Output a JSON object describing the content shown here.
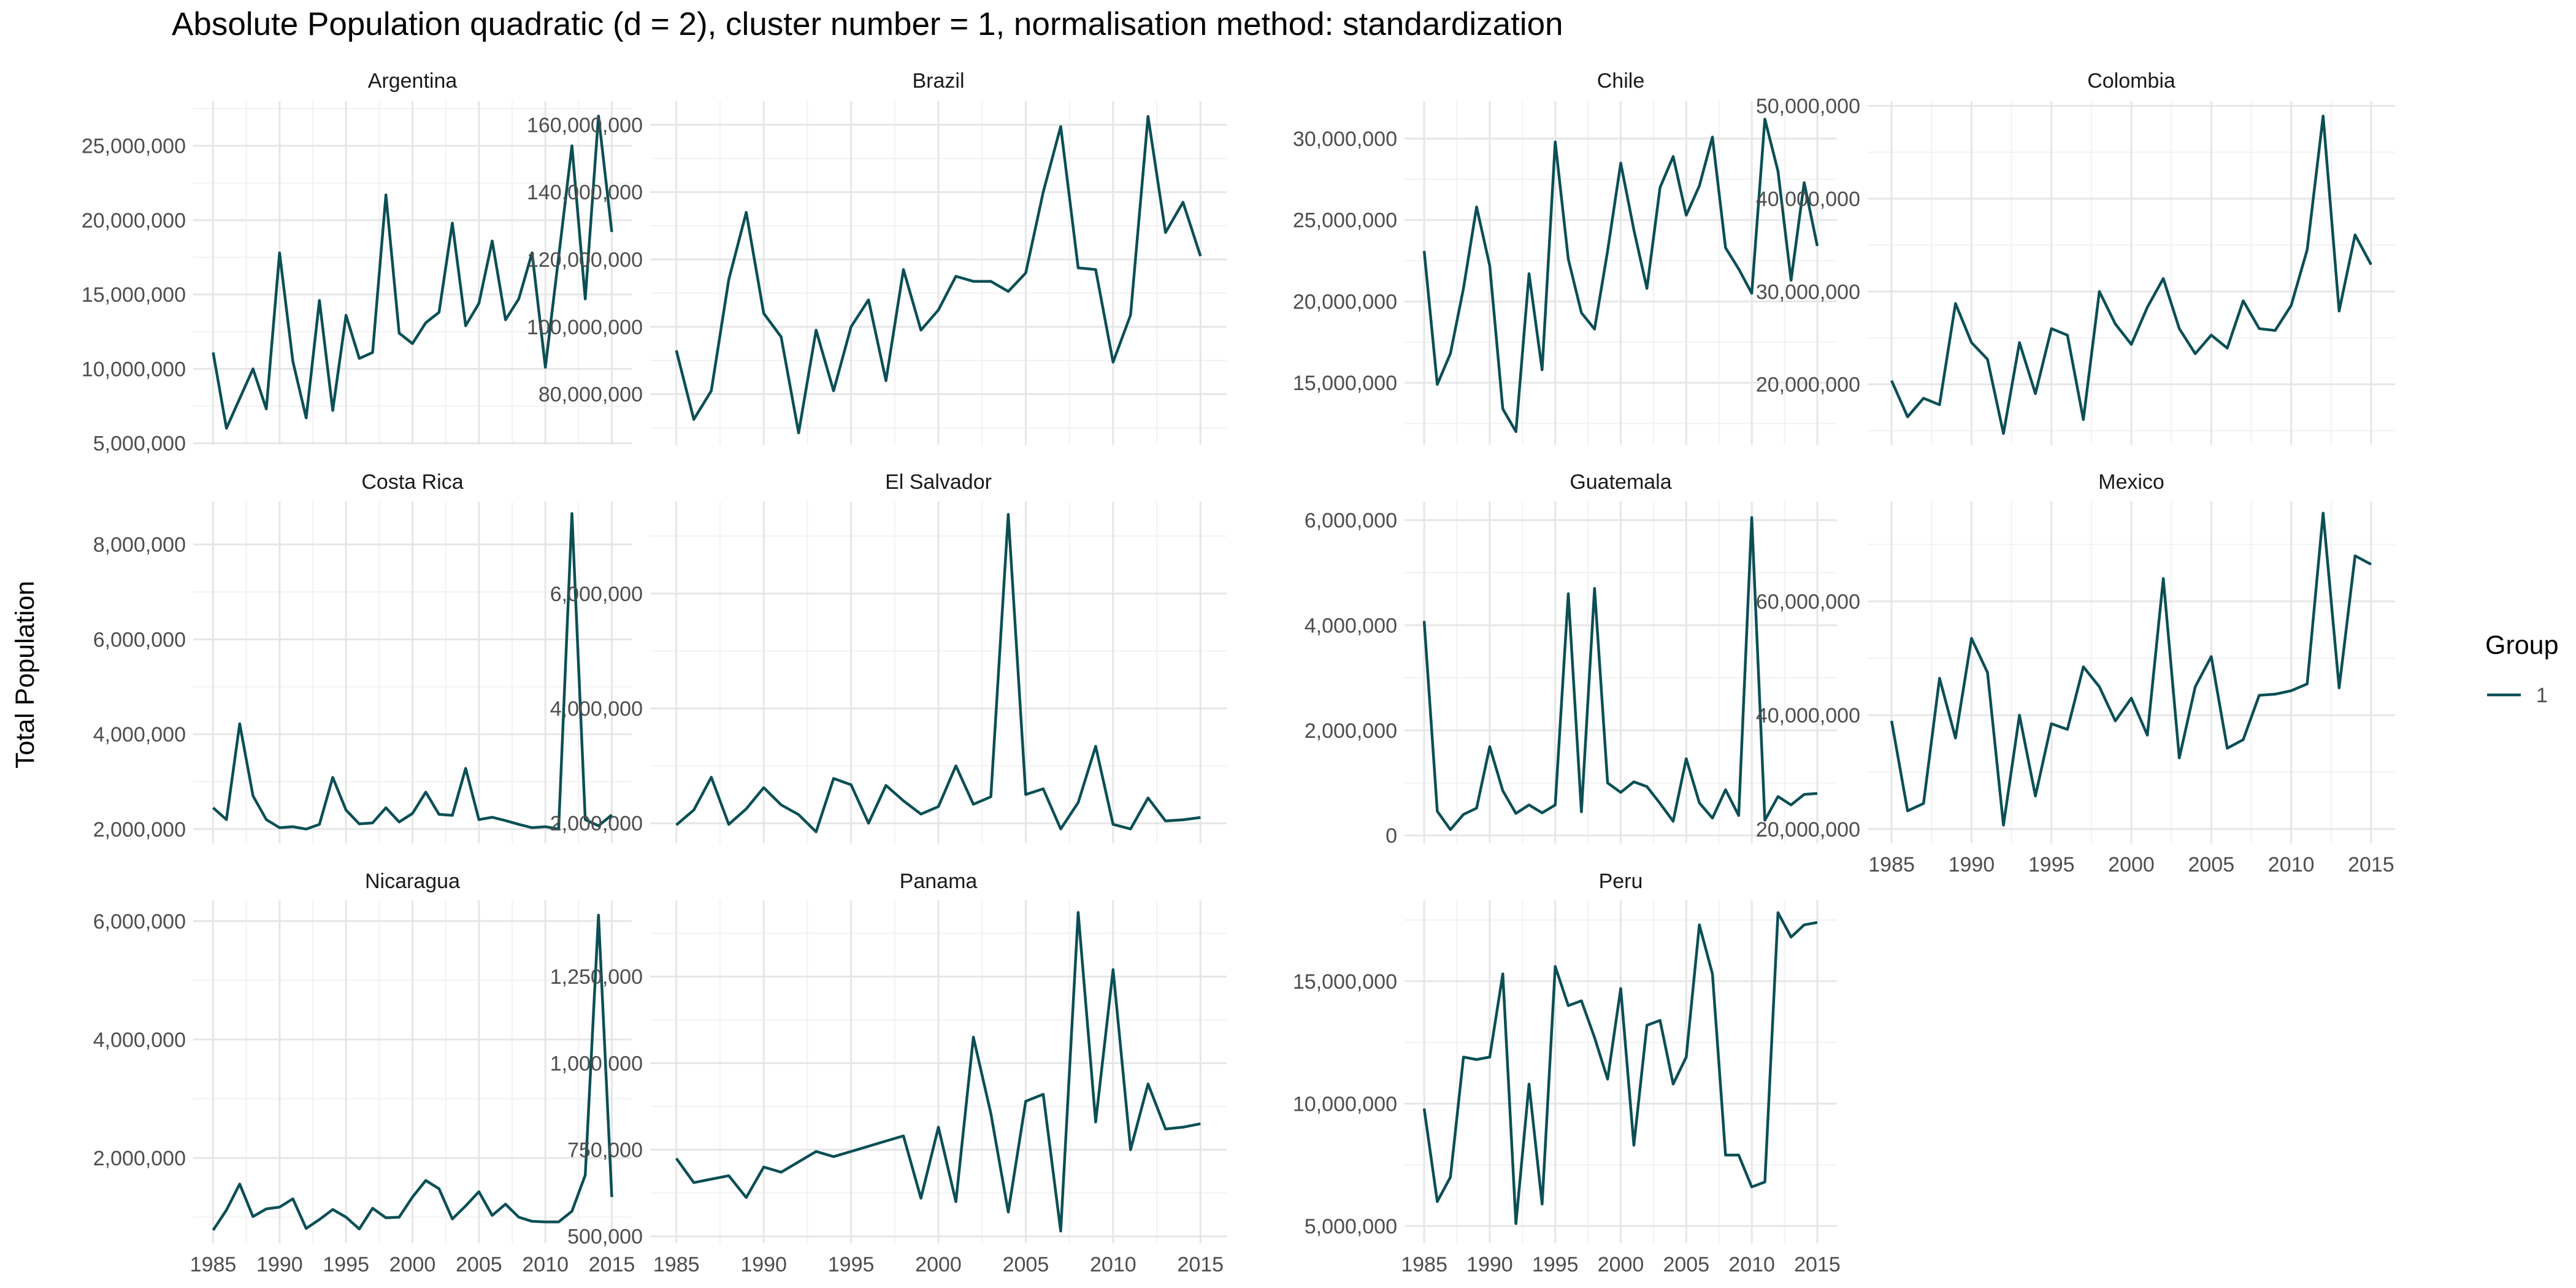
{
  "chart_data": {
    "type": "line",
    "title": "Absolute Population quadratic (d = 2), cluster number = 1, normalisation method: standardization",
    "ylabel": "Total Population",
    "xlabel": "",
    "legend": {
      "title": "Group",
      "placement": "right",
      "entries": [
        {
          "label": "1",
          "color": "#0b4f55"
        }
      ]
    },
    "x": [
      1985,
      1986,
      1987,
      1988,
      1989,
      1990,
      1991,
      1992,
      1993,
      1994,
      1995,
      1996,
      1997,
      1998,
      1999,
      2000,
      2001,
      2002,
      2003,
      2004,
      2005,
      2006,
      2007,
      2008,
      2009,
      2010,
      2011,
      2012,
      2013,
      2014,
      2015
    ],
    "x_ticks": [
      1985,
      1990,
      1995,
      2000,
      2005,
      2010,
      2015
    ],
    "xlim": [
      1983.5,
      2016.5
    ],
    "grid": true,
    "panels": [
      {
        "name": "Argentina",
        "y_ticks": [
          5000000,
          10000000,
          15000000,
          20000000,
          25000000
        ],
        "y_tick_labels": [
          "5,000,000",
          "10,000,000",
          "15,000,000",
          "20,000,000",
          "25,000,000"
        ],
        "ylim": [
          4900000,
          28000000
        ],
        "values": [
          11100000,
          6000000,
          8000000,
          10000000,
          7300000,
          17800000,
          10500000,
          6700000,
          14600000,
          7200000,
          13600000,
          10700000,
          11100000,
          21700000,
          12400000,
          11700000,
          13100000,
          13800000,
          19800000,
          12900000,
          14400000,
          18600000,
          13300000,
          14700000,
          17800000,
          10100000,
          17500000,
          25000000,
          14700000,
          27000000,
          19200000
        ]
      },
      {
        "name": "Brazil",
        "y_ticks": [
          80000000,
          100000000,
          120000000,
          140000000,
          160000000
        ],
        "y_tick_labels": [
          "80,000,000",
          "100,000,000",
          "120,000,000",
          "140,000,000",
          "160,000,000"
        ],
        "ylim": [
          65000000,
          167000000
        ],
        "values": [
          93000000,
          72500000,
          81000000,
          114000000,
          134000000,
          104000000,
          97000000,
          68500000,
          99000000,
          81000000,
          100000000,
          108000000,
          84000000,
          117000000,
          99000000,
          105000000,
          115000000,
          113500000,
          113500000,
          110500000,
          116000000,
          140000000,
          159500000,
          117500000,
          117000000,
          89500000,
          103500000,
          162500000,
          128000000,
          137000000,
          121000000
        ]
      },
      {
        "name": "Chile",
        "y_ticks": [
          15000000,
          20000000,
          25000000,
          30000000
        ],
        "y_tick_labels": [
          "15,000,000",
          "20,000,000",
          "25,000,000",
          "30,000,000"
        ],
        "ylim": [
          11200000,
          32300000
        ],
        "values": [
          23100000,
          14900000,
          16800000,
          20800000,
          25800000,
          22200000,
          13400000,
          12000000,
          21700000,
          15800000,
          29800000,
          22600000,
          19300000,
          18300000,
          23100000,
          28500000,
          24400000,
          20800000,
          27000000,
          28900000,
          25300000,
          27100000,
          30100000,
          23300000,
          22000000,
          20500000,
          31200000,
          28000000,
          21300000,
          27300000,
          23400000
        ]
      },
      {
        "name": "Colombia",
        "y_ticks": [
          20000000,
          30000000,
          40000000,
          50000000
        ],
        "y_tick_labels": [
          "20,000,000",
          "30,000,000",
          "40,000,000",
          "50,000,000"
        ],
        "ylim": [
          13500000,
          50500000
        ],
        "values": [
          20400000,
          16500000,
          18500000,
          17800000,
          28700000,
          24500000,
          22700000,
          14700000,
          24500000,
          19000000,
          26000000,
          25300000,
          16200000,
          30000000,
          26500000,
          24300000,
          28300000,
          31400000,
          26000000,
          23300000,
          25300000,
          23900000,
          29000000,
          26000000,
          25800000,
          28500000,
          34500000,
          48900000,
          27900000,
          36100000,
          32900000
        ]
      },
      {
        "name": "Costa Rica",
        "y_ticks": [
          2000000,
          4000000,
          6000000,
          8000000
        ],
        "y_tick_labels": [
          "2,000,000",
          "4,000,000",
          "6,000,000",
          "8,000,000"
        ],
        "ylim": [
          1700000,
          8900000
        ],
        "values": [
          2450000,
          2200000,
          4220000,
          2700000,
          2200000,
          2030000,
          2050000,
          2000000,
          2100000,
          3090000,
          2400000,
          2110000,
          2130000,
          2450000,
          2150000,
          2330000,
          2780000,
          2310000,
          2290000,
          3280000,
          2200000,
          2250000,
          2180000,
          2100000,
          2030000,
          2050000,
          2000000,
          8650000,
          2200000,
          2070000,
          2300000
        ]
      },
      {
        "name": "El Salvador",
        "y_ticks": [
          2000000,
          4000000,
          6000000
        ],
        "y_tick_labels": [
          "2,000,000",
          "4,000,000",
          "6,000,000"
        ],
        "ylim": [
          1650000,
          7600000
        ],
        "values": [
          1970000,
          2230000,
          2800000,
          1980000,
          2250000,
          2620000,
          2320000,
          2150000,
          1850000,
          2780000,
          2670000,
          2000000,
          2660000,
          2390000,
          2160000,
          2290000,
          3000000,
          2330000,
          2460000,
          7380000,
          2500000,
          2600000,
          1900000,
          2360000,
          3340000,
          1980000,
          1900000,
          2440000,
          2040000,
          2060000,
          2100000
        ]
      },
      {
        "name": "Guatemala",
        "y_ticks": [
          0,
          2000000,
          4000000,
          6000000
        ],
        "y_tick_labels": [
          "0",
          "2,000,000",
          "4,000,000",
          "6,000,000"
        ],
        "ylim": [
          -150000,
          6350000
        ],
        "values": [
          4080000,
          460000,
          110000,
          400000,
          520000,
          1690000,
          850000,
          420000,
          580000,
          430000,
          580000,
          4600000,
          450000,
          4700000,
          1000000,
          820000,
          1020000,
          930000,
          610000,
          270000,
          1460000,
          620000,
          330000,
          870000,
          380000,
          6050000,
          290000,
          740000,
          580000,
          780000,
          800000
        ]
      },
      {
        "name": "Mexico",
        "y_ticks": [
          20000000,
          40000000,
          60000000
        ],
        "y_tick_labels": [
          "20,000,000",
          "40,000,000",
          "60,000,000"
        ],
        "ylim": [
          17500000,
          77500000
        ],
        "values": [
          39000000,
          23200000,
          24500000,
          46500000,
          36000000,
          53500000,
          47500000,
          20700000,
          40000000,
          25800000,
          38500000,
          37500000,
          48500000,
          45000000,
          39000000,
          43000000,
          36500000,
          64000000,
          32500000,
          45000000,
          50300000,
          34200000,
          35700000,
          43500000,
          43700000,
          44300000,
          45500000,
          75500000,
          44800000,
          68000000,
          66500000
        ]
      },
      {
        "name": "Nicaragua",
        "y_ticks": [
          2000000,
          4000000,
          6000000
        ],
        "y_tick_labels": [
          "2,000,000",
          "4,000,000",
          "6,000,000"
        ],
        "ylim": [
          560000,
          6350000
        ],
        "values": [
          780000,
          1120000,
          1560000,
          1010000,
          1140000,
          1170000,
          1310000,
          810000,
          960000,
          1130000,
          1000000,
          800000,
          1150000,
          990000,
          1000000,
          1340000,
          1620000,
          1480000,
          970000,
          1190000,
          1430000,
          1030000,
          1220000,
          1000000,
          930000,
          920000,
          920000,
          1100000,
          1710000,
          6100000,
          1340000
        ]
      },
      {
        "name": "Panama",
        "y_ticks": [
          500000,
          750000,
          1000000,
          1250000
        ],
        "y_tick_labels": [
          "500,000",
          "750,000",
          "1,000,000",
          "1,250,000"
        ],
        "ylim": [
          480000,
          1470000
        ],
        "values": [
          725000,
          655000,
          665000,
          675000,
          612000,
          700000,
          685000,
          715000,
          745000,
          730000,
          745000,
          760000,
          775000,
          790000,
          610000,
          815000,
          600000,
          1075000,
          855000,
          570000,
          890000,
          910000,
          515000,
          1435000,
          830000,
          1270000,
          750000,
          940000,
          810000,
          815000,
          825000
        ]
      },
      {
        "name": "Peru",
        "y_ticks": [
          5000000,
          10000000,
          15000000
        ],
        "y_tick_labels": [
          "5,000,000",
          "10,000,000",
          "15,000,000"
        ],
        "ylim": [
          4300000,
          18300000
        ],
        "values": [
          9800000,
          6000000,
          7000000,
          11900000,
          11800000,
          11900000,
          15300000,
          5100000,
          10800000,
          5900000,
          15600000,
          14000000,
          14200000,
          12700000,
          11000000,
          14700000,
          8300000,
          13200000,
          13400000,
          10800000,
          11900000,
          17300000,
          15300000,
          7900000,
          7900000,
          6600000,
          6800000,
          17800000,
          16800000,
          17300000,
          17400000
        ]
      }
    ]
  }
}
